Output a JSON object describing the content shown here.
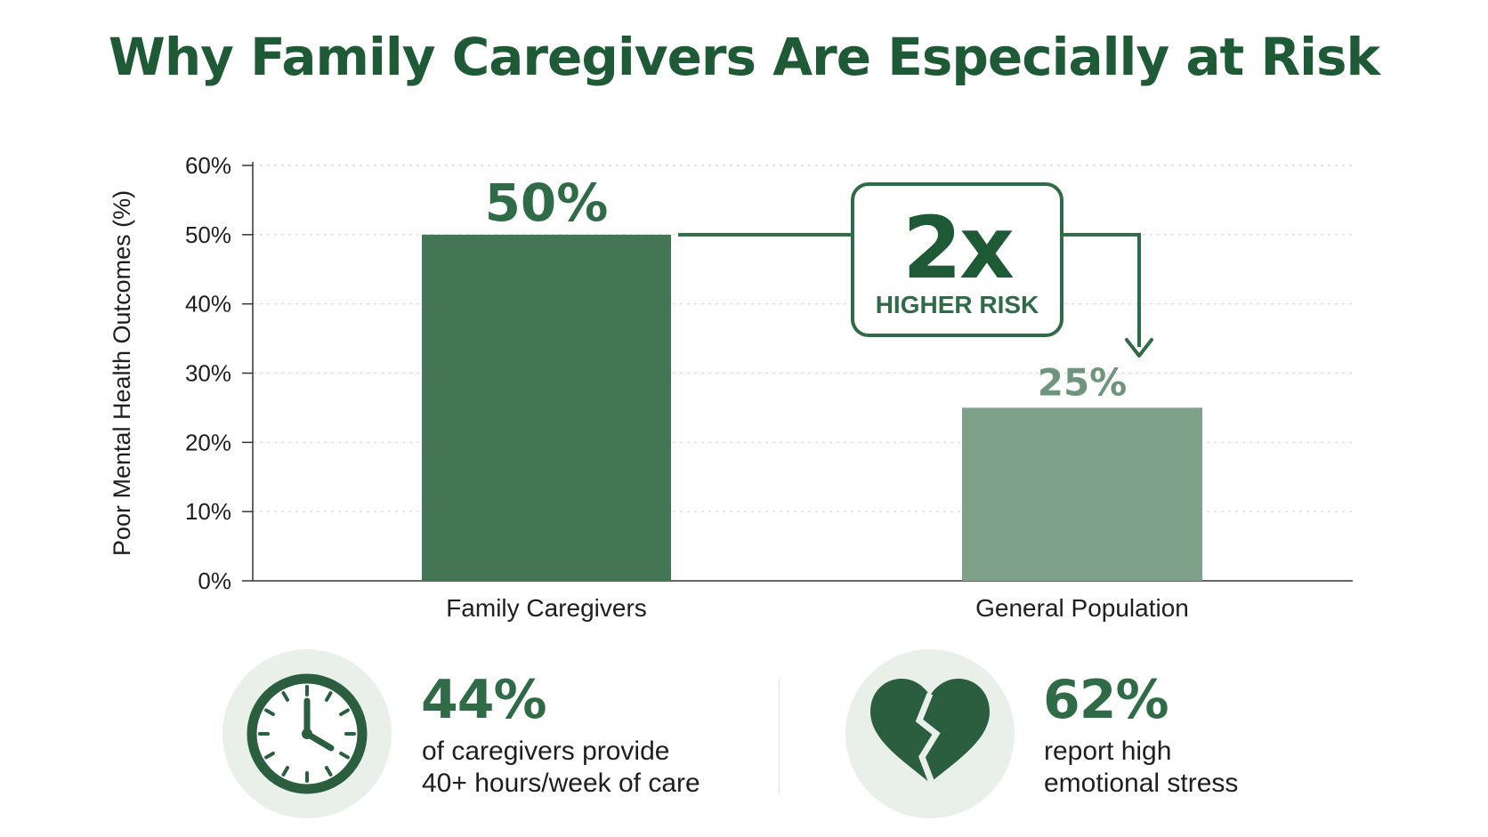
{
  "title": "Why Family Caregivers Are Especially at Risk",
  "colors": {
    "title": "#1f5a36",
    "bar_primary": "#447554",
    "bar_secondary": "#7fa18a",
    "accent": "#2f6b46",
    "icon_bg": "#e9f0ea"
  },
  "chart_data": {
    "type": "bar",
    "ylabel": "Poor Mental Health Outcomes (%)",
    "xlabel": "",
    "ylim": [
      0,
      60
    ],
    "yticks": [
      0,
      10,
      20,
      30,
      40,
      50,
      60
    ],
    "ytick_labels": [
      "0%",
      "10%",
      "20%",
      "30%",
      "40%",
      "50%",
      "60%"
    ],
    "categories": [
      "Family Caregivers",
      "General Population"
    ],
    "values": [
      50,
      25
    ],
    "value_labels": [
      "50%",
      "25%"
    ],
    "grid": true,
    "annotation": {
      "value": "2x",
      "label": "HIGHER RISK"
    }
  },
  "stats": [
    {
      "icon": "clock-icon",
      "value": "44%",
      "line1": "of caregivers provide",
      "line2": "40+ hours/week of care"
    },
    {
      "icon": "broken-heart-icon",
      "value": "62%",
      "line1": "report high",
      "line2": "emotional stress"
    }
  ]
}
